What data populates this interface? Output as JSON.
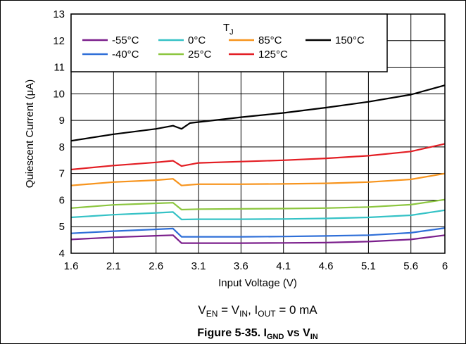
{
  "chart_data": {
    "type": "line",
    "title": "",
    "xlabel": "Input Voltage (V)",
    "ylabel": "Quiescent Current (μA)",
    "xlim": [
      1.6,
      6
    ],
    "ylim": [
      4,
      13
    ],
    "x_ticks": [
      "1.6",
      "2.1",
      "2.6",
      "3.1",
      "3.6",
      "4.1",
      "4.6",
      "5.1",
      "5.6",
      "6"
    ],
    "y_ticks": [
      "4",
      "5",
      "6",
      "7",
      "8",
      "9",
      "10",
      "11",
      "12",
      "13"
    ],
    "grid": true,
    "legend": {
      "title": "T",
      "title_sub": "J",
      "position": "top-right"
    },
    "series": [
      {
        "name": "-55°C",
        "color": "#7b1f8c",
        "points": [
          [
            1.6,
            4.52
          ],
          [
            2.1,
            4.6
          ],
          [
            2.6,
            4.66
          ],
          [
            2.8,
            4.68
          ],
          [
            2.9,
            4.38
          ],
          [
            3.1,
            4.38
          ],
          [
            3.6,
            4.38
          ],
          [
            4.1,
            4.39
          ],
          [
            4.6,
            4.4
          ],
          [
            5.1,
            4.44
          ],
          [
            5.6,
            4.52
          ],
          [
            6,
            4.68
          ]
        ]
      },
      {
        "name": "-40°C",
        "color": "#2f6fd8",
        "points": [
          [
            1.6,
            4.75
          ],
          [
            2.1,
            4.83
          ],
          [
            2.6,
            4.9
          ],
          [
            2.8,
            4.93
          ],
          [
            2.9,
            4.62
          ],
          [
            3.1,
            4.62
          ],
          [
            3.6,
            4.62
          ],
          [
            4.1,
            4.63
          ],
          [
            4.6,
            4.65
          ],
          [
            5.1,
            4.68
          ],
          [
            5.6,
            4.77
          ],
          [
            6,
            4.95
          ]
        ]
      },
      {
        "name": "0°C",
        "color": "#35c2c6",
        "points": [
          [
            1.6,
            5.35
          ],
          [
            2.1,
            5.45
          ],
          [
            2.6,
            5.52
          ],
          [
            2.8,
            5.55
          ],
          [
            2.9,
            5.27
          ],
          [
            3.1,
            5.28
          ],
          [
            3.6,
            5.28
          ],
          [
            4.1,
            5.29
          ],
          [
            4.6,
            5.31
          ],
          [
            5.1,
            5.35
          ],
          [
            5.6,
            5.43
          ],
          [
            6,
            5.62
          ]
        ]
      },
      {
        "name": "25°C",
        "color": "#8cc63f",
        "points": [
          [
            1.6,
            5.7
          ],
          [
            2.1,
            5.82
          ],
          [
            2.6,
            5.88
          ],
          [
            2.8,
            5.9
          ],
          [
            2.9,
            5.64
          ],
          [
            3.1,
            5.66
          ],
          [
            3.6,
            5.67
          ],
          [
            4.1,
            5.68
          ],
          [
            4.6,
            5.7
          ],
          [
            5.1,
            5.74
          ],
          [
            5.6,
            5.83
          ],
          [
            6,
            6.02
          ]
        ]
      },
      {
        "name": "85°C",
        "color": "#f7941d",
        "points": [
          [
            1.6,
            6.55
          ],
          [
            2.1,
            6.68
          ],
          [
            2.6,
            6.75
          ],
          [
            2.8,
            6.8
          ],
          [
            2.9,
            6.55
          ],
          [
            3.1,
            6.6
          ],
          [
            3.6,
            6.6
          ],
          [
            4.1,
            6.61
          ],
          [
            4.6,
            6.63
          ],
          [
            5.1,
            6.68
          ],
          [
            5.6,
            6.78
          ],
          [
            6,
            7.0
          ]
        ]
      },
      {
        "name": "125°C",
        "color": "#e31e24",
        "points": [
          [
            1.6,
            7.15
          ],
          [
            2.1,
            7.3
          ],
          [
            2.6,
            7.42
          ],
          [
            2.8,
            7.48
          ],
          [
            2.9,
            7.28
          ],
          [
            3.1,
            7.4
          ],
          [
            3.6,
            7.45
          ],
          [
            4.1,
            7.5
          ],
          [
            4.6,
            7.57
          ],
          [
            5.1,
            7.67
          ],
          [
            5.6,
            7.83
          ],
          [
            6,
            8.12
          ]
        ]
      },
      {
        "name": "150°C",
        "color": "#000000",
        "points": [
          [
            1.6,
            8.23
          ],
          [
            2.1,
            8.48
          ],
          [
            2.6,
            8.68
          ],
          [
            2.8,
            8.8
          ],
          [
            2.9,
            8.68
          ],
          [
            3.0,
            8.9
          ],
          [
            3.6,
            9.12
          ],
          [
            4.1,
            9.28
          ],
          [
            4.6,
            9.48
          ],
          [
            5.1,
            9.7
          ],
          [
            5.6,
            9.97
          ],
          [
            6,
            10.32
          ]
        ]
      }
    ]
  },
  "condition": {
    "v_en": "V",
    "v_en_sub": "EN",
    "eq1": " = V",
    "v_in_sub": "IN",
    "comma": ", I",
    "i_out_sub": "OUT",
    "eq2": " = 0 mA"
  },
  "caption": {
    "prefix": "Figure 5-35. I",
    "gnd_sub": "GND",
    "mid": " vs V",
    "in_sub": "IN"
  }
}
